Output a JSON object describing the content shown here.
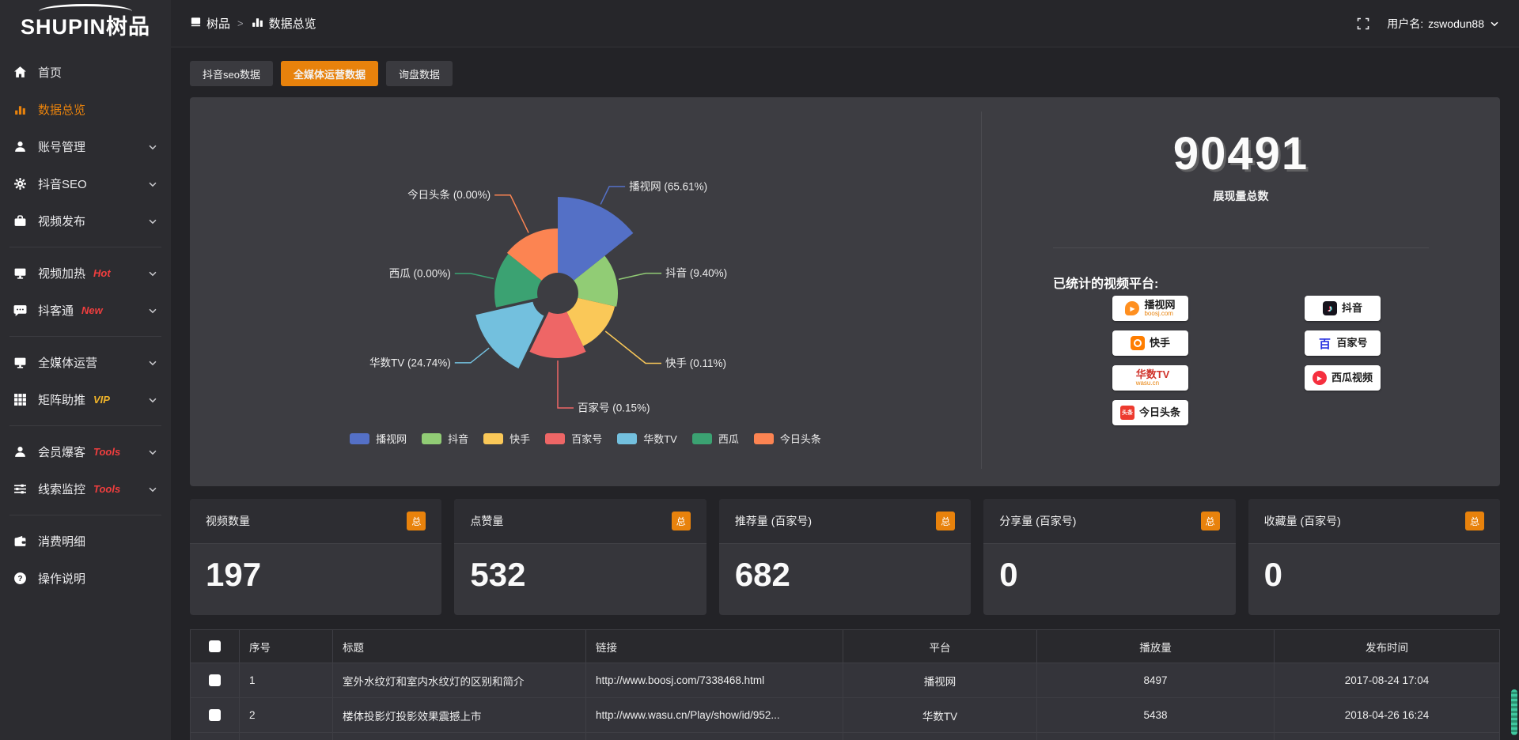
{
  "brand": {
    "en": "SHUPIN",
    "cn": "树品"
  },
  "topbar": {
    "breadcrumb": [
      {
        "id": "shupin",
        "icon": "app",
        "label": "树品"
      },
      {
        "id": "data-overview",
        "icon": "chart",
        "label": "数据总览"
      }
    ],
    "separator": ">",
    "user_prefix": "用户名:",
    "username": "zswodun88"
  },
  "sidebar": {
    "items": [
      {
        "id": "home",
        "icon": "home",
        "label": "首页"
      },
      {
        "id": "data-overview",
        "icon": "chart",
        "label": "数据总览",
        "active": true
      },
      {
        "id": "account-manage",
        "icon": "user",
        "label": "账号管理",
        "chevron": true
      },
      {
        "id": "douyin-seo",
        "icon": "gear",
        "label": "抖音SEO",
        "chevron": true
      },
      {
        "id": "video-publish",
        "icon": "video",
        "label": "视频发布",
        "chevron": true
      },
      {
        "divider": true
      },
      {
        "id": "video-heat",
        "icon": "monitor",
        "label": "视频加热",
        "tag": "Hot",
        "tag_color": "#f03e3e",
        "chevron": true
      },
      {
        "id": "douketong",
        "icon": "chat",
        "label": "抖客通",
        "tag": "New",
        "tag_color": "#f03e3e",
        "chevron": true
      },
      {
        "divider": true
      },
      {
        "id": "media-ops",
        "icon": "monitor",
        "label": "全媒体运营",
        "chevron": true
      },
      {
        "id": "matrix-boost",
        "icon": "grid",
        "label": "矩阵助推",
        "tag": "VIP",
        "tag_color": "#f0b429",
        "chevron": true
      },
      {
        "divider": true
      },
      {
        "id": "member-baoke",
        "icon": "user",
        "label": "会员爆客",
        "tag": "Tools",
        "tag_color": "#f03e3e",
        "chevron": true
      },
      {
        "id": "clue-monitor",
        "icon": "sliders",
        "label": "线索监控",
        "tag": "Tools",
        "tag_color": "#f03e3e",
        "chevron": true
      },
      {
        "divider": true
      },
      {
        "id": "expense-detail",
        "icon": "wallet",
        "label": "消费明细"
      },
      {
        "id": "help",
        "icon": "question",
        "label": "操作说明"
      }
    ]
  },
  "tabs": [
    {
      "id": "douyin-seo-data",
      "label": "抖音seo数据",
      "active": false
    },
    {
      "id": "media-ops-data",
      "label": "全媒体运营数据",
      "active": true
    },
    {
      "id": "inquiry-data",
      "label": "询盘数据",
      "active": false
    }
  ],
  "chart_data": {
    "type": "pie",
    "subtype": "rose",
    "title": "",
    "legend_position": "bottom",
    "slices": [
      {
        "name": "播视网",
        "value": 65.61,
        "pct": "65.61%",
        "color": "#5470c6"
      },
      {
        "name": "抖音",
        "value": 9.4,
        "pct": "9.40%",
        "color": "#91cc75"
      },
      {
        "name": "快手",
        "value": 0.11,
        "pct": "0.11%",
        "color": "#fac858"
      },
      {
        "name": "百家号",
        "value": 0.15,
        "pct": "0.15%",
        "color": "#ee6666"
      },
      {
        "name": "华数TV",
        "value": 24.74,
        "pct": "24.74%",
        "color": "#73c0de"
      },
      {
        "name": "西瓜",
        "value": 0.0,
        "pct": "0.00%",
        "color": "#3ba272"
      },
      {
        "name": "今日头条",
        "value": 0.0,
        "pct": "0.00%",
        "color": "#fc8452"
      }
    ],
    "layout": {
      "center": [
        465,
        248
      ],
      "inner_radius": 26,
      "radii": [
        122,
        76,
        74,
        82,
        100,
        80,
        82
      ],
      "label_ext": [
        25,
        35,
        65,
        60,
        30,
        30,
        53
      ],
      "offsets": [
        0,
        0,
        0,
        0,
        8,
        0,
        0
      ]
    }
  },
  "summary": {
    "total": "90491",
    "total_label": "展现量总数",
    "platforms_title": "已统计的视频平台:",
    "platforms_left": [
      {
        "icon": "boosj",
        "name": "播视网",
        "sub": "boosj.com"
      },
      {
        "icon": "kuaishou",
        "name": "快手"
      },
      {
        "icon": "wasu",
        "name": "华数TV",
        "sub": "wasu.cn",
        "name_color": "#d0342c"
      },
      {
        "icon": "toutiao",
        "name": "今日头条"
      }
    ],
    "platforms_right": [
      {
        "icon": "douyin",
        "name": "抖音"
      },
      {
        "icon": "baijia",
        "name": "百家号"
      },
      {
        "icon": "xigua",
        "name": "西瓜视频"
      }
    ]
  },
  "stat_cards": [
    {
      "title": "视频数量",
      "badge": "总",
      "value": "197"
    },
    {
      "title": "点赞量",
      "badge": "总",
      "value": "532"
    },
    {
      "title": "推荐量 (百家号)",
      "badge": "总",
      "value": "682"
    },
    {
      "title": "分享量 (百家号)",
      "badge": "总",
      "value": "0"
    },
    {
      "title": "收藏量 (百家号)",
      "badge": "总",
      "value": "0"
    }
  ],
  "table": {
    "headers": [
      "序号",
      "标题",
      "链接",
      "平台",
      "播放量",
      "发布时间"
    ],
    "rows": [
      {
        "index": "1",
        "title": "室外水纹灯和室内水纹灯的区别和简介",
        "link": "http://www.boosj.com/7338468.html",
        "platform": "播视网",
        "plays": "8497",
        "time": "2017-08-24 17:04"
      },
      {
        "index": "2",
        "title": "楼体投影灯投影效果震撼上市",
        "link": "http://www.wasu.cn/Play/show/id/952...",
        "platform": "华数TV",
        "plays": "5438",
        "time": "2018-04-26 16:24"
      },
      {
        "index": "",
        "title": "",
        "link": "",
        "platform": "",
        "plays": "",
        "time": ""
      }
    ]
  }
}
